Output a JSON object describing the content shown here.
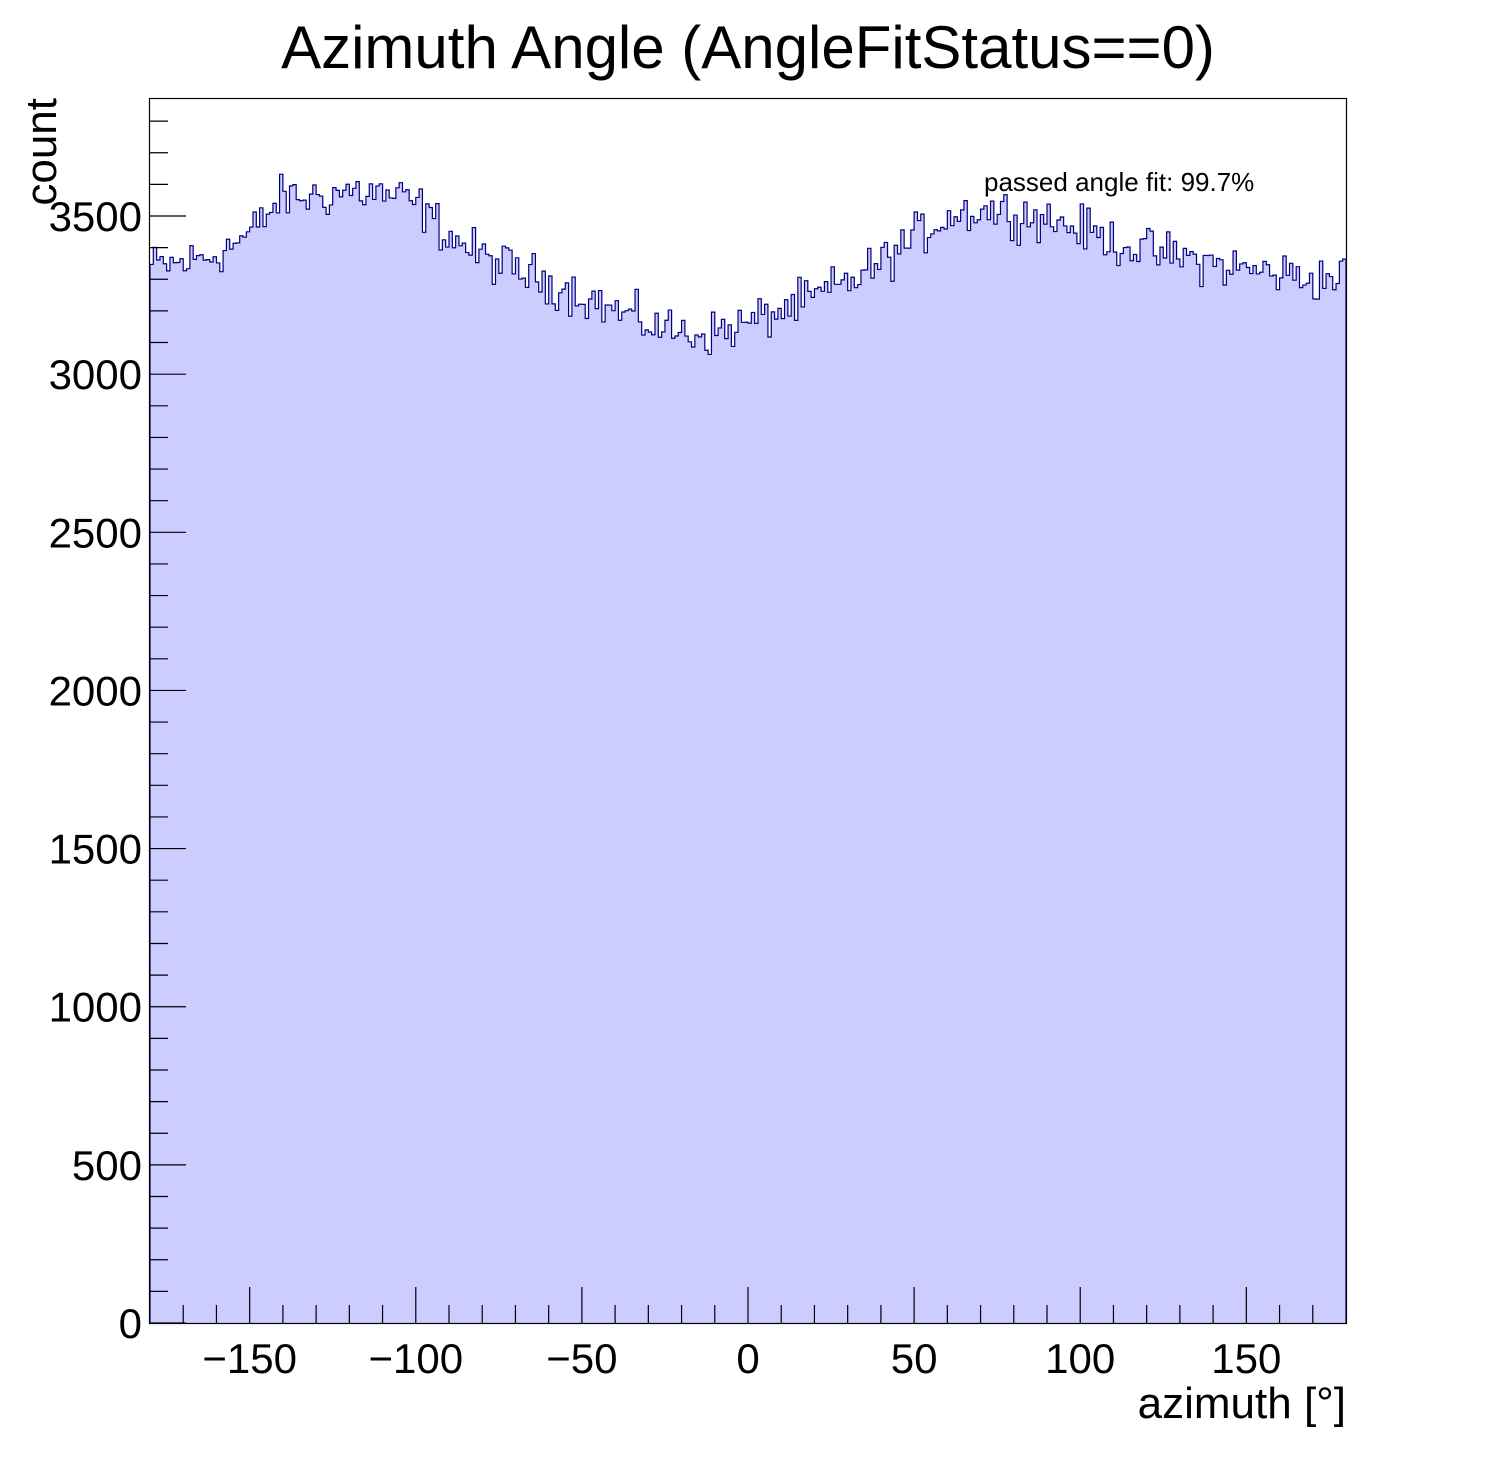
{
  "chart_data": {
    "type": "bar",
    "title": "Azimuth Angle (AngleFitStatus==0)",
    "xlabel": "azimuth [°]",
    "ylabel": "count",
    "annotation": "passed angle fit: 99.7%",
    "xlim": [
      -180,
      180
    ],
    "ylim": [
      0,
      3870
    ],
    "x_ticks": [
      -150,
      -100,
      -50,
      0,
      50,
      100,
      150
    ],
    "x_tick_labels": [
      "−150",
      "−100",
      "−50",
      "0",
      "50",
      "100",
      "150"
    ],
    "y_ticks": [
      0,
      500,
      1000,
      1500,
      2000,
      2500,
      3000,
      3500
    ],
    "y_tick_labels": [
      "0",
      "500",
      "1000",
      "1500",
      "2000",
      "2500",
      "3000",
      "3500"
    ],
    "grid": false,
    "legend": "none",
    "bin_count": 360,
    "bin_width_deg": 1,
    "profile_points": {
      "x": [
        -180,
        -170,
        -160,
        -150,
        -140,
        -130,
        -120,
        -110,
        -100,
        -90,
        -80,
        -70,
        -60,
        -50,
        -40,
        -30,
        -20,
        -10,
        0,
        10,
        20,
        30,
        40,
        50,
        60,
        70,
        80,
        90,
        100,
        110,
        120,
        130,
        140,
        150,
        160,
        170,
        180
      ],
      "y": [
        3340,
        3350,
        3380,
        3440,
        3560,
        3560,
        3580,
        3570,
        3540,
        3440,
        3370,
        3330,
        3290,
        3250,
        3200,
        3160,
        3130,
        3130,
        3160,
        3200,
        3240,
        3290,
        3350,
        3430,
        3500,
        3520,
        3510,
        3490,
        3460,
        3420,
        3390,
        3370,
        3350,
        3330,
        3320,
        3300,
        3310
      ]
    },
    "noise_amplitude": 70,
    "colors": {
      "fill": "#ccccff",
      "line": "#00007f",
      "axis": "#000000"
    }
  }
}
